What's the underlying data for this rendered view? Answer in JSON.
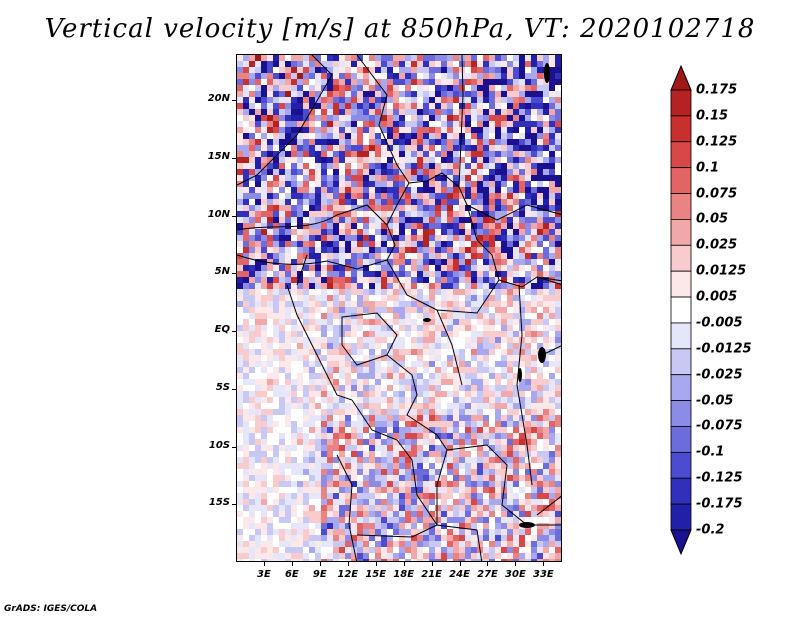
{
  "title": "Vertical velocity [m/s] at 850hPa, VT: 2020102718",
  "credit": "GrADS: IGES/COLA",
  "map": {
    "lon_range": [
      0,
      35
    ],
    "lat_range": [
      -20,
      24
    ],
    "lat_labels": [
      "20N",
      "15N",
      "10N",
      "5N",
      "EQ",
      "5S",
      "10S",
      "15S"
    ],
    "lat_values": [
      20,
      15,
      10,
      5,
      0,
      -5,
      -10,
      -15
    ],
    "lon_labels": [
      "3E",
      "6E",
      "9E",
      "12E",
      "15E",
      "18E",
      "21E",
      "24E",
      "27E",
      "30E",
      "33E"
    ],
    "lon_values": [
      3,
      6,
      9,
      12,
      15,
      18,
      21,
      24,
      27,
      30,
      33
    ],
    "shading": "red = positive (upward), blue = negative (downward)"
  },
  "colorbar": {
    "levels": [
      "0.175",
      "0.15",
      "0.125",
      "0.1",
      "0.075",
      "0.05",
      "0.025",
      "0.0125",
      "0.005",
      "-0.005",
      "-0.0125",
      "-0.025",
      "-0.05",
      "-0.075",
      "-0.1",
      "-0.125",
      "-0.175",
      "-0.2"
    ],
    "colors": [
      "#a01818",
      "#b42222",
      "#c83030",
      "#d84848",
      "#e26464",
      "#ea8484",
      "#f2a8a8",
      "#f8cccc",
      "#fce8e8",
      "#ffffff",
      "#e6e6fa",
      "#c8c8f4",
      "#a8a8ee",
      "#8c8ce6",
      "#6c6cdc",
      "#4c4cd0",
      "#3030bc",
      "#2020a8",
      "#1a1090"
    ]
  }
}
